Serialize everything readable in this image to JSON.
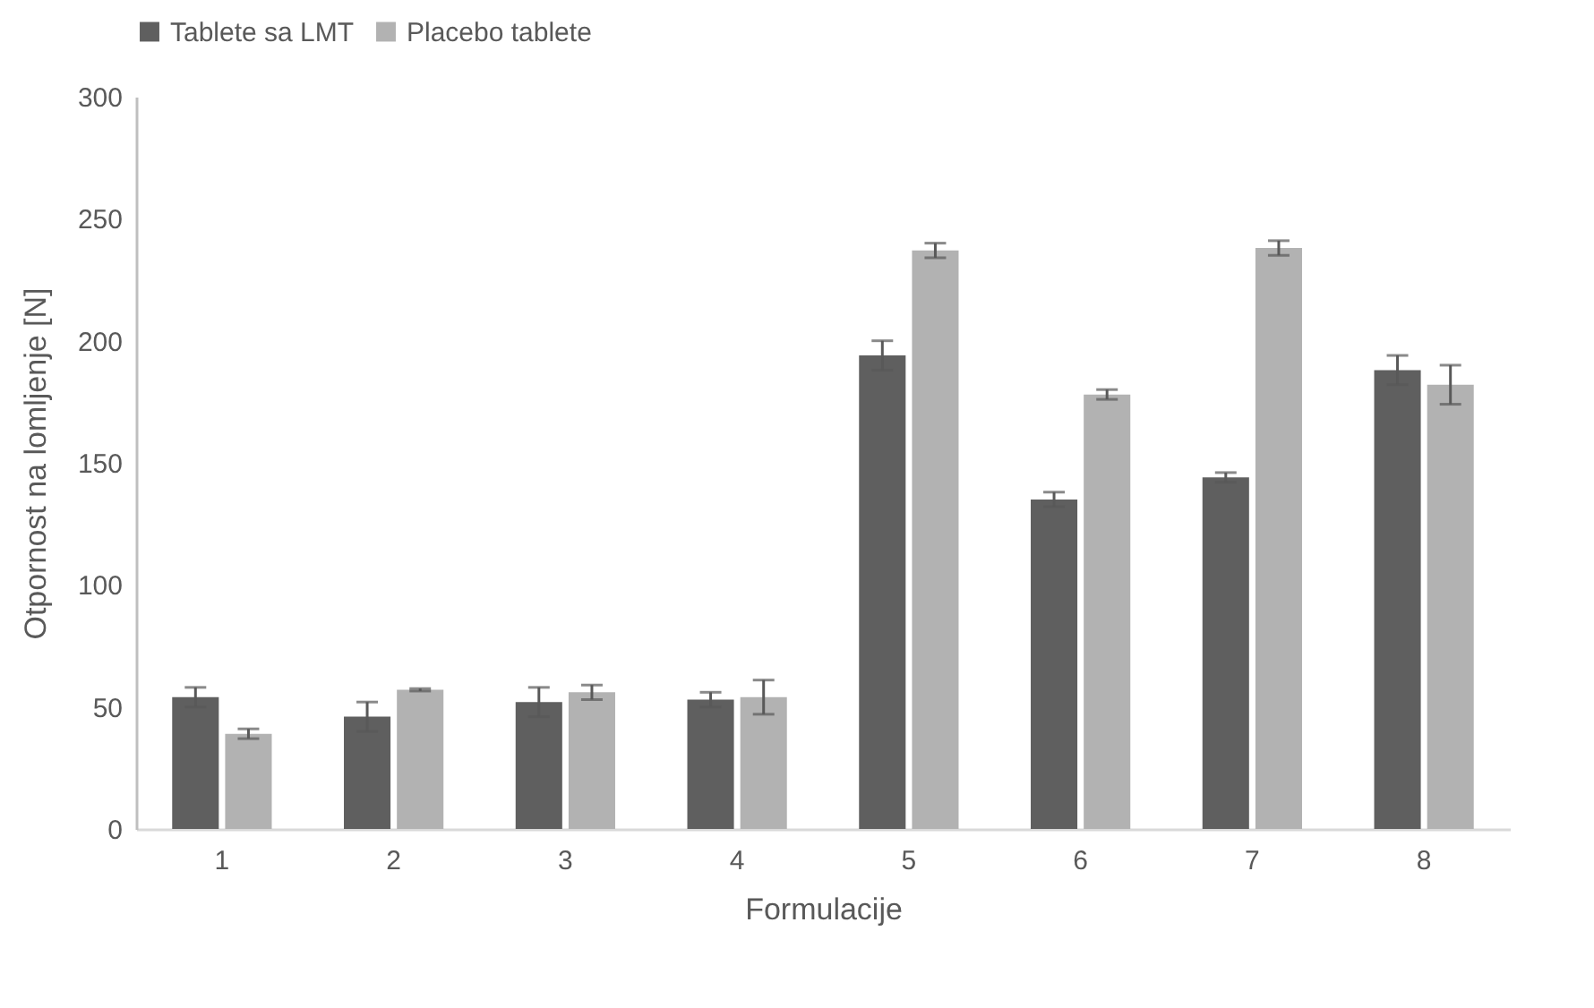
{
  "chart_data": {
    "type": "bar",
    "xlabel": "Formulacije",
    "ylabel": "Otpornost na lomljenje [N]",
    "categories": [
      "1",
      "2",
      "3",
      "4",
      "5",
      "6",
      "7",
      "8"
    ],
    "series": [
      {
        "name": "Tablete sa LMT",
        "color": "#5f5f5f",
        "values": [
          54,
          46,
          52,
          53,
          194,
          135,
          144,
          188
        ],
        "errors": [
          4,
          6,
          6,
          3,
          6,
          3,
          2,
          6
        ]
      },
      {
        "name": "Placebo tablete",
        "color": "#b2b2b2",
        "values": [
          39,
          57,
          56,
          54,
          237,
          178,
          238,
          182
        ],
        "errors": [
          2,
          0.5,
          3,
          7,
          3,
          2,
          3,
          8
        ]
      }
    ],
    "ylim": [
      0,
      300
    ],
    "yticks": [
      0,
      50,
      100,
      150,
      200,
      250,
      300
    ],
    "grid": false,
    "legend": "top"
  }
}
